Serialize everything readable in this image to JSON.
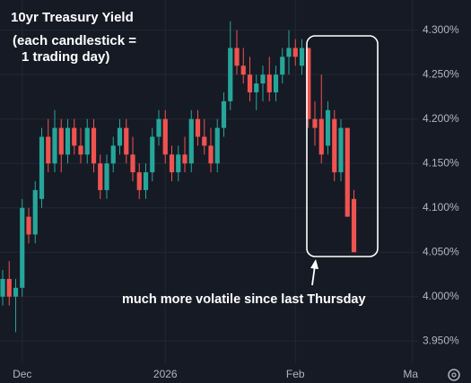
{
  "chart_data": {
    "type": "candlestick",
    "title": "10yr Treasury Yield",
    "subtitle_lines": [
      "(each candlestick =",
      "1 trading day)"
    ],
    "annotation": "much more volatile since last Thursday",
    "categories": [
      null,
      null,
      null,
      "Dec",
      null,
      null,
      null,
      null,
      null,
      null,
      null,
      null,
      null,
      null,
      null,
      null,
      null,
      null,
      null,
      null,
      null,
      null,
      null,
      null,
      null,
      "2026",
      null,
      null,
      null,
      null,
      null,
      null,
      null,
      null,
      null,
      null,
      null,
      null,
      null,
      null,
      null,
      null,
      null,
      null,
      null,
      "Feb",
      null,
      null,
      null,
      null,
      null,
      null,
      null,
      null,
      null,
      null,
      null,
      null,
      null,
      null,
      null,
      null,
      null,
      "Mar"
    ],
    "open": [
      4.0,
      4.02,
      4.0,
      4.01,
      4.09,
      4.07,
      4.11,
      4.18,
      4.15,
      4.19,
      4.16,
      4.19,
      4.17,
      4.16,
      4.19,
      4.15,
      4.12,
      4.15,
      4.17,
      4.19,
      4.16,
      4.14,
      4.12,
      4.14,
      4.18,
      4.2,
      4.16,
      4.14,
      4.16,
      4.15,
      4.2,
      4.18,
      4.17,
      4.15,
      4.19,
      4.22,
      4.28,
      4.26,
      4.25,
      4.23,
      4.24,
      4.25,
      4.23,
      4.25,
      4.27,
      4.28,
      4.26,
      4.28,
      4.2,
      4.2,
      4.17,
      4.2,
      4.14,
      4.19,
      4.11,
      null,
      null,
      null,
      null,
      null,
      null,
      null,
      null,
      null
    ],
    "high": [
      4.03,
      4.04,
      4.02,
      4.11,
      4.1,
      4.13,
      4.19,
      4.2,
      4.21,
      4.2,
      4.2,
      4.2,
      4.19,
      4.2,
      4.2,
      4.16,
      4.16,
      4.18,
      4.2,
      4.2,
      4.18,
      4.15,
      4.15,
      4.19,
      4.21,
      4.21,
      4.17,
      4.17,
      4.18,
      4.21,
      4.21,
      4.2,
      4.19,
      4.2,
      4.23,
      4.31,
      4.3,
      4.28,
      4.27,
      4.25,
      4.26,
      4.27,
      4.26,
      4.28,
      4.3,
      4.29,
      4.29,
      4.28,
      4.22,
      4.25,
      4.22,
      4.21,
      4.2,
      4.19,
      4.12,
      null,
      null,
      null,
      null,
      null,
      null,
      null,
      null,
      null
    ],
    "low": [
      3.99,
      3.99,
      3.96,
      4.0,
      4.06,
      4.06,
      4.1,
      4.14,
      4.14,
      4.14,
      4.15,
      4.16,
      4.15,
      4.15,
      4.14,
      4.11,
      4.11,
      4.14,
      4.16,
      4.15,
      4.13,
      4.11,
      4.11,
      4.13,
      4.17,
      4.15,
      4.13,
      4.13,
      4.14,
      4.14,
      4.17,
      4.16,
      4.14,
      4.14,
      4.18,
      4.21,
      4.25,
      4.24,
      4.22,
      4.21,
      4.22,
      4.22,
      4.22,
      4.24,
      4.25,
      4.26,
      4.25,
      4.19,
      4.17,
      4.15,
      4.16,
      4.13,
      4.13,
      4.09,
      4.05,
      null,
      null,
      null,
      null,
      null,
      null,
      null,
      null,
      null
    ],
    "close": [
      4.02,
      4.0,
      4.01,
      4.1,
      4.07,
      4.12,
      4.18,
      4.15,
      4.19,
      4.16,
      4.19,
      4.17,
      4.16,
      4.19,
      4.15,
      4.12,
      4.15,
      4.17,
      4.19,
      4.16,
      4.14,
      4.12,
      4.14,
      4.18,
      4.2,
      4.16,
      4.14,
      4.16,
      4.15,
      4.2,
      4.18,
      4.17,
      4.15,
      4.19,
      4.22,
      4.28,
      4.26,
      4.25,
      4.23,
      4.24,
      4.25,
      4.23,
      4.25,
      4.27,
      4.28,
      4.27,
      4.28,
      4.2,
      4.19,
      4.16,
      4.21,
      4.14,
      4.19,
      4.09,
      4.05,
      null,
      null,
      null,
      null,
      null,
      null,
      null,
      null,
      null
    ],
    "up_color": "#26a69a",
    "down_color": "#ef5350",
    "ylim": [
      3.925,
      4.334
    ],
    "yticks": [
      {
        "value": 3.95,
        "label": "3.950%"
      },
      {
        "value": 4.0,
        "label": "4.000%"
      },
      {
        "value": 4.05,
        "label": "4.050%"
      },
      {
        "value": 4.1,
        "label": "4.100%"
      },
      {
        "value": 4.15,
        "label": "4.150%"
      },
      {
        "value": 4.2,
        "label": "4.200%"
      },
      {
        "value": 4.25,
        "label": "4.250%"
      },
      {
        "value": 4.3,
        "label": "4.300%"
      }
    ],
    "grid": true
  }
}
